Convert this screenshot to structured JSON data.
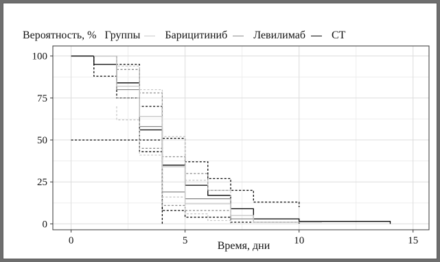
{
  "chart_data": {
    "type": "line",
    "subtype": "step",
    "xlabel": "Время, дни",
    "ylabel": "",
    "legend": {
      "title": "Вероятность, %",
      "heading": "Группы",
      "position": "top",
      "items": [
        {
          "name": "Барицитиниб",
          "color": "#c8c8c8"
        },
        {
          "name": "Левилимаб",
          "color": "#8a8a8a"
        },
        {
          "name": "СТ",
          "color": "#000000"
        }
      ]
    },
    "xlim": [
      -0.8,
      15.7
    ],
    "ylim": [
      -3.5,
      106
    ],
    "xticks": [
      0,
      5,
      10,
      15
    ],
    "yticks": [
      0,
      25,
      50,
      75,
      100
    ],
    "x_minor_gridlines": [
      2.5,
      7.5,
      12.5
    ],
    "y_minor_gridlines": [
      12.5,
      37.5,
      62.5,
      87.5
    ],
    "grid": true,
    "series": [
      {
        "name": "СТ",
        "color": "#000000",
        "style": "solid",
        "points": [
          [
            0,
            100
          ],
          [
            1,
            100
          ],
          [
            1,
            95
          ],
          [
            2,
            95
          ],
          [
            2,
            84
          ],
          [
            3,
            84
          ],
          [
            3,
            56
          ],
          [
            4,
            56
          ],
          [
            4,
            35
          ],
          [
            5,
            35
          ],
          [
            5,
            23
          ],
          [
            6,
            23
          ],
          [
            6,
            17
          ],
          [
            7,
            17
          ],
          [
            7,
            9
          ],
          [
            8,
            9
          ],
          [
            8,
            3
          ],
          [
            10,
            3
          ],
          [
            10,
            1.5
          ],
          [
            14,
            1.5
          ],
          [
            14,
            0
          ]
        ]
      },
      {
        "color": "#000000",
        "style": "dashed",
        "points": [
          [
            0,
            50
          ],
          [
            4,
            50
          ],
          [
            4,
            8
          ],
          [
            5,
            8
          ],
          [
            5,
            4
          ],
          [
            7,
            4
          ],
          [
            7,
            1
          ],
          [
            10,
            1
          ],
          [
            10,
            0
          ]
        ]
      },
      {
        "color": "#000000",
        "style": "dashed",
        "points": [
          [
            1,
            100
          ],
          [
            1,
            88
          ],
          [
            2,
            88
          ],
          [
            2,
            75
          ],
          [
            3,
            75
          ],
          [
            3,
            43
          ],
          [
            4,
            43
          ],
          [
            4,
            0
          ]
        ]
      },
      {
        "color": "#000000",
        "style": "dashed",
        "points": [
          [
            2,
            100
          ],
          [
            2,
            95
          ],
          [
            3,
            95
          ],
          [
            3,
            70
          ],
          [
            4,
            70
          ],
          [
            4,
            51
          ],
          [
            5,
            51
          ],
          [
            5,
            37
          ],
          [
            6,
            37
          ],
          [
            6,
            27
          ],
          [
            7,
            27
          ],
          [
            7,
            20
          ],
          [
            8,
            20
          ],
          [
            8,
            13
          ],
          [
            10,
            13
          ],
          [
            10,
            10
          ]
        ]
      },
      {
        "name": "Левилимаб",
        "color": "#8a8a8a",
        "style": "solid",
        "points": [
          [
            1,
            100
          ],
          [
            2,
            100
          ],
          [
            2,
            80
          ],
          [
            3,
            80
          ],
          [
            3,
            58
          ],
          [
            4,
            58
          ],
          [
            4,
            19
          ],
          [
            5,
            19
          ],
          [
            5,
            15
          ],
          [
            7,
            15
          ],
          [
            7,
            3
          ],
          [
            8,
            3
          ],
          [
            8,
            1
          ],
          [
            10,
            1
          ]
        ]
      },
      {
        "color": "#8a8a8a",
        "style": "dashed",
        "points": [
          [
            2,
            92
          ],
          [
            3,
            92
          ],
          [
            3,
            78
          ],
          [
            4,
            78
          ],
          [
            4,
            40
          ],
          [
            5,
            40
          ],
          [
            5,
            30
          ],
          [
            6,
            30
          ],
          [
            6,
            20
          ],
          [
            7,
            20
          ]
        ]
      },
      {
        "color": "#8a8a8a",
        "style": "dashed",
        "points": [
          [
            2,
            75
          ],
          [
            3,
            75
          ],
          [
            3,
            45
          ],
          [
            4,
            45
          ],
          [
            4,
            11
          ],
          [
            5,
            11
          ],
          [
            5,
            8
          ],
          [
            7,
            8
          ],
          [
            7,
            1
          ]
        ]
      },
      {
        "name": "Барицитиниб",
        "color": "#c8c8c8",
        "style": "solid",
        "points": [
          [
            1,
            100
          ],
          [
            2,
            100
          ],
          [
            2,
            82
          ],
          [
            3,
            82
          ],
          [
            3,
            64
          ],
          [
            4,
            64
          ],
          [
            4,
            34
          ],
          [
            5,
            34
          ],
          [
            5,
            12
          ],
          [
            7,
            12
          ],
          [
            7,
            5
          ],
          [
            8,
            5
          ],
          [
            8,
            1
          ],
          [
            11,
            1
          ]
        ]
      },
      {
        "color": "#c8c8c8",
        "style": "dashed",
        "points": [
          [
            2,
            100
          ],
          [
            2,
            94
          ],
          [
            3,
            94
          ],
          [
            3,
            80
          ],
          [
            4,
            80
          ],
          [
            4,
            52
          ],
          [
            5,
            52
          ],
          [
            5,
            26
          ],
          [
            6,
            26
          ],
          [
            6,
            20
          ],
          [
            7,
            20
          ],
          [
            7,
            13
          ]
        ]
      },
      {
        "color": "#c8c8c8",
        "style": "dashed",
        "points": [
          [
            2,
            70
          ],
          [
            2,
            62
          ],
          [
            3,
            62
          ],
          [
            3,
            41
          ],
          [
            4,
            41
          ],
          [
            4,
            16
          ],
          [
            5,
            16
          ],
          [
            5,
            6
          ],
          [
            6,
            6
          ],
          [
            6,
            2
          ],
          [
            7,
            2
          ],
          [
            7,
            0
          ]
        ]
      }
    ]
  }
}
